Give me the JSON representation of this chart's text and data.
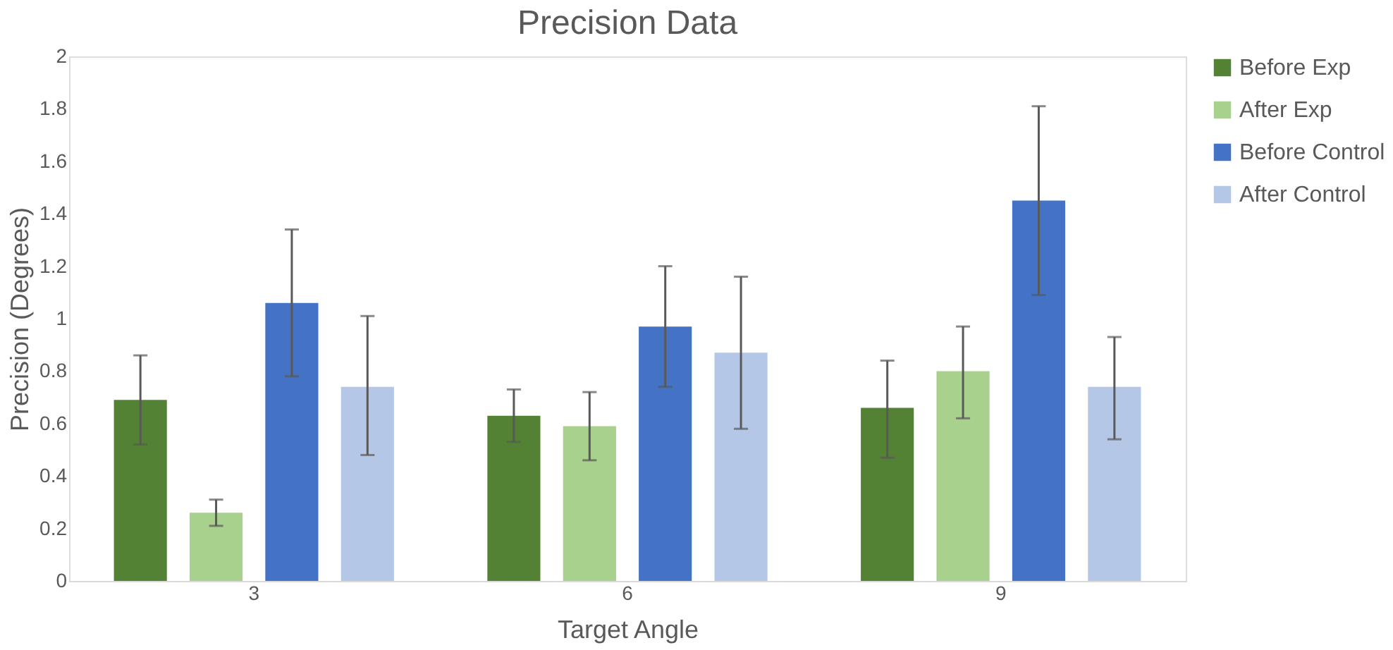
{
  "chart_data": {
    "type": "bar",
    "title": "Precision Data",
    "xlabel": "Target Angle",
    "ylabel": "Precision (Degrees)",
    "categories": [
      "3",
      "6",
      "9"
    ],
    "series": [
      {
        "name": "Before Exp",
        "color": "#548235",
        "values": [
          0.69,
          0.63,
          0.66
        ],
        "errors": [
          [
            0.52,
            0.86
          ],
          [
            0.53,
            0.73
          ],
          [
            0.47,
            0.84
          ]
        ]
      },
      {
        "name": "After Exp",
        "color": "#a9d18e",
        "values": [
          0.26,
          0.59,
          0.8
        ],
        "errors": [
          [
            0.21,
            0.31
          ],
          [
            0.46,
            0.72
          ],
          [
            0.62,
            0.97
          ]
        ]
      },
      {
        "name": "Before Control",
        "color": "#4472c4",
        "values": [
          1.06,
          0.97,
          1.45
        ],
        "errors": [
          [
            0.78,
            1.34
          ],
          [
            0.74,
            1.2
          ],
          [
            1.09,
            1.81
          ]
        ]
      },
      {
        "name": "After Control",
        "color": "#b4c7e7",
        "values": [
          0.74,
          0.87,
          0.74
        ],
        "errors": [
          [
            0.48,
            1.01
          ],
          [
            0.58,
            1.16
          ],
          [
            0.54,
            0.93
          ]
        ]
      }
    ],
    "ylim": [
      0,
      2
    ],
    "yticks": [
      0,
      0.2,
      0.4,
      0.6,
      0.8,
      1,
      1.2,
      1.4,
      1.6,
      1.8,
      2
    ],
    "grid": false,
    "legend": "right"
  }
}
